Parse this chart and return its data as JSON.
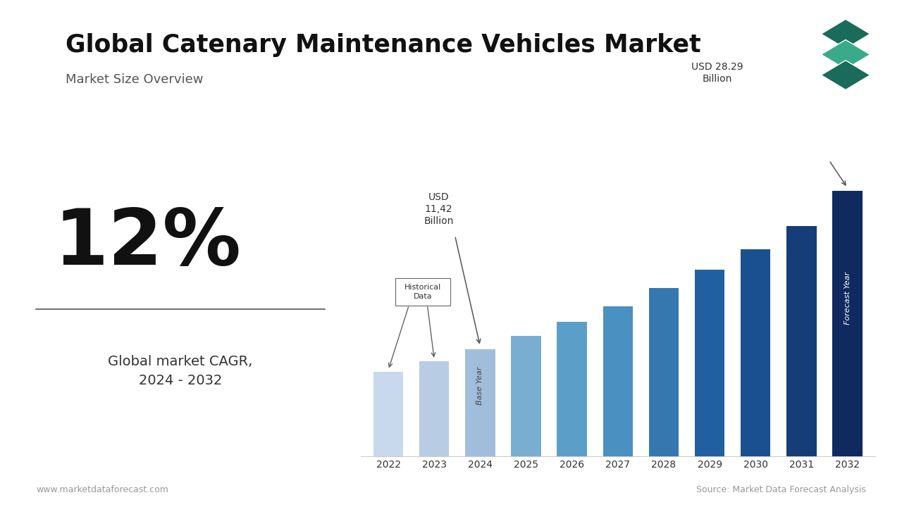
{
  "title": "Global Catenary Maintenance Vehicles Market",
  "subtitle": "Market Size Overview",
  "years": [
    2022,
    2023,
    2024,
    2025,
    2026,
    2027,
    2028,
    2029,
    2030,
    2031,
    2032
  ],
  "values": [
    9.0,
    10.1,
    11.42,
    12.8,
    14.3,
    16.0,
    17.9,
    19.9,
    22.0,
    24.5,
    28.29
  ],
  "bar_colors": [
    "#c8d8ed",
    "#b8cce4",
    "#a0bedc",
    "#7aaed0",
    "#5b9fc8",
    "#4a90c0",
    "#3578b0",
    "#2060a0",
    "#1a5090",
    "#153d78",
    "#102a60"
  ],
  "cagr_text": "12%",
  "cagr_label": "Global market CAGR,\n2024 - 2032",
  "website": "www.marketdataforecast.com",
  "source": "Source: Market Data Forecast Analysis",
  "accent_color": "#2e8b7a",
  "background_color": "#ffffff",
  "title_bar_color": "#2e8b7a",
  "logo_colors": [
    "#1a6b5a",
    "#3aab8a",
    "#1a6b5a"
  ],
  "usd_11_label": "USD\n11,42\nBillion",
  "usd_28_label": "USD 28.29\nBillion"
}
